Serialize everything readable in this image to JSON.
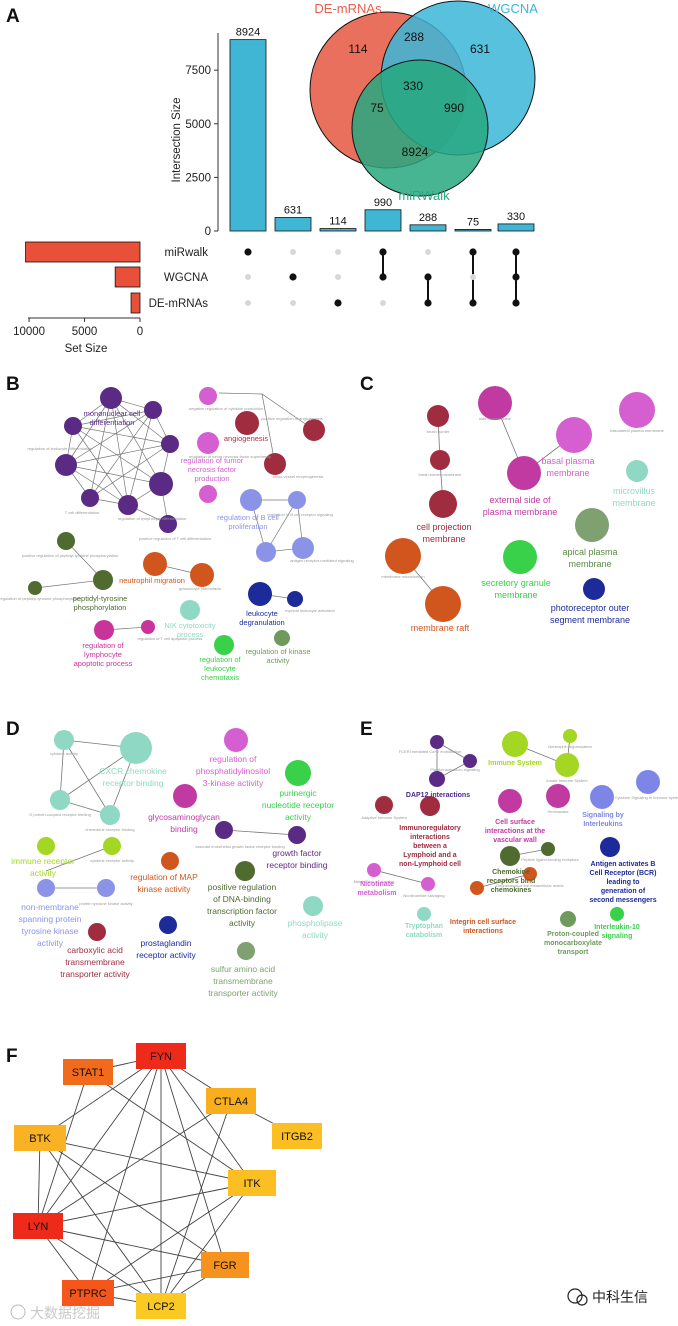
{
  "panels": {
    "a": "A",
    "b": "B",
    "c": "C",
    "d": "D",
    "e": "E",
    "f": "F"
  },
  "venn": {
    "sets": [
      {
        "name": "DE-mRNAs",
        "color": "#e8604c"
      },
      {
        "name": "WGCNA",
        "color": "#3bb6d8"
      },
      {
        "name": "miRWalk",
        "color": "#27a87f"
      }
    ],
    "regions": {
      "de_only": "114",
      "wgcna_only": "631",
      "mirwalk_only": "8924",
      "de_wgcna": "288",
      "de_mirwalk": "75",
      "wgcna_mirwalk": "990",
      "all": "330"
    }
  },
  "chart_data": {
    "type": "bar",
    "title": "",
    "ylabel": "Intersection Size",
    "ylim": [
      0,
      9000
    ],
    "yticks": [
      0,
      2500,
      5000,
      7500
    ],
    "bar_color": "#41b6d4",
    "categories": [
      "miRwalk",
      "WGCNA",
      "DE-mRNAs",
      "miRwalk+WGCNA",
      "WGCNA+DE-mRNAs",
      "miRwalk+DE-mRNAs",
      "miRwalk+WGCNA+DE-mRNAs"
    ],
    "values": [
      8924,
      631,
      114,
      990,
      288,
      75,
      330
    ],
    "matrix": [
      [
        0
      ],
      [
        1
      ],
      [
        2
      ],
      [
        0,
        1
      ],
      [
        1,
        2
      ],
      [
        0,
        2
      ],
      [
        0,
        1,
        2
      ]
    ],
    "set_names": [
      "miRwalk",
      "WGCNA",
      "DE-mRNAs"
    ],
    "set_size": {
      "xlabel": "Set Size",
      "values": [
        10319,
        2239,
        807
      ],
      "xlim": [
        0,
        11000
      ],
      "xticks": [
        10000,
        5000,
        0
      ],
      "color": "#e8503a"
    }
  },
  "network_b": {
    "labels": [
      {
        "text": "mononuclear cell",
        "color": "#5b2a84"
      },
      {
        "text": "differentiation",
        "color": "#5b2a84"
      },
      {
        "text": "angiogenesis",
        "color": "#b03040"
      },
      {
        "text": "regulation of tumor",
        "color": "#d55fd0"
      },
      {
        "text": "necrosis factor",
        "color": "#d55fd0"
      },
      {
        "text": "production",
        "color": "#d55fd0"
      },
      {
        "text": "regulation of B cell",
        "color": "#8b93e6"
      },
      {
        "text": "proliferation",
        "color": "#8b93e6"
      },
      {
        "text": "neutrophil migration",
        "color": "#d0561e"
      },
      {
        "text": "peptidyl-tyrosine",
        "color": "#4f6b30"
      },
      {
        "text": "phosphorylation",
        "color": "#4f6b30"
      },
      {
        "text": "leukocyte",
        "color": "#1d2a9a"
      },
      {
        "text": "degranulation",
        "color": "#1d2a9a"
      },
      {
        "text": "NIK cytotoxicity",
        "color": "#8fd9c4"
      },
      {
        "text": "process",
        "color": "#8fd9c4"
      },
      {
        "text": "regulation of",
        "color": "#c8349a"
      },
      {
        "text": "lymphocyte",
        "color": "#c8349a"
      },
      {
        "text": "apoptotic process",
        "color": "#c8349a"
      },
      {
        "text": "regulation of",
        "color": "#39d04a"
      },
      {
        "text": "leukocyte",
        "color": "#39d04a"
      },
      {
        "text": "chemotaxis",
        "color": "#39d04a"
      },
      {
        "text": "regulation of kinase",
        "color": "#6f9a5c"
      },
      {
        "text": "activity",
        "color": "#6f9a5c"
      }
    ]
  },
  "network_c": {
    "labels": [
      {
        "text": "cell projection",
        "color": "#a02c40"
      },
      {
        "text": "membrane",
        "color": "#a02c40"
      },
      {
        "text": "basal plasma",
        "color": "#d55fd0"
      },
      {
        "text": "membrane",
        "color": "#d55fd0"
      },
      {
        "text": "external side of",
        "color": "#c03aa2"
      },
      {
        "text": "plasma membrane",
        "color": "#c03aa2"
      },
      {
        "text": "microvillus",
        "color": "#8fd9c4"
      },
      {
        "text": "membrane",
        "color": "#8fd9c4"
      },
      {
        "text": "apical plasma",
        "color": "#5a8a46"
      },
      {
        "text": "membrane",
        "color": "#5a8a46"
      },
      {
        "text": "secretory granule",
        "color": "#39d04a"
      },
      {
        "text": "membrane",
        "color": "#39d04a"
      },
      {
        "text": "photoreceptor outer",
        "color": "#1d2a9a"
      },
      {
        "text": "segment membrane",
        "color": "#1d2a9a"
      },
      {
        "text": "membrane raft",
        "color": "#d0561e"
      }
    ]
  },
  "network_d": {
    "labels": [
      {
        "text": "CXCR chemokine",
        "color": "#8fd9c4"
      },
      {
        "text": "receptor binding",
        "color": "#8fd9c4"
      },
      {
        "text": "regulation of",
        "color": "#d55fd0"
      },
      {
        "text": "phosphatidylinositol",
        "color": "#d55fd0"
      },
      {
        "text": "3-kinase activity",
        "color": "#d55fd0"
      },
      {
        "text": "purinergic",
        "color": "#39d04a"
      },
      {
        "text": "nucleotide receptor",
        "color": "#39d04a"
      },
      {
        "text": "activity",
        "color": "#39d04a"
      },
      {
        "text": "glycosaminoglycan",
        "color": "#c03aa2"
      },
      {
        "text": "binding",
        "color": "#c03aa2"
      },
      {
        "text": "growth factor",
        "color": "#5b2a84"
      },
      {
        "text": "receptor binding",
        "color": "#5b2a84"
      },
      {
        "text": "immune receptor",
        "color": "#a4d624"
      },
      {
        "text": "activity",
        "color": "#a4d624"
      },
      {
        "text": "regulation of MAP",
        "color": "#d0561e"
      },
      {
        "text": "kinase activity",
        "color": "#d0561e"
      },
      {
        "text": "positive regulation",
        "color": "#4f6b30"
      },
      {
        "text": "of DNA-binding",
        "color": "#4f6b30"
      },
      {
        "text": "transcription factor",
        "color": "#4f6b30"
      },
      {
        "text": "activity",
        "color": "#4f6b30"
      },
      {
        "text": "phospholipase",
        "color": "#8fd9c4"
      },
      {
        "text": "activity",
        "color": "#8fd9c4"
      },
      {
        "text": "non-membrane",
        "color": "#8b93e6"
      },
      {
        "text": "spanning protein",
        "color": "#8b93e6"
      },
      {
        "text": "tyrosine kinase",
        "color": "#8b93e6"
      },
      {
        "text": "activity",
        "color": "#8b93e6"
      },
      {
        "text": "carboxylic acid",
        "color": "#a02c40"
      },
      {
        "text": "transmembrane",
        "color": "#a02c40"
      },
      {
        "text": "transporter activity",
        "color": "#a02c40"
      },
      {
        "text": "prostaglandin",
        "color": "#1d2a9a"
      },
      {
        "text": "receptor activity",
        "color": "#1d2a9a"
      },
      {
        "text": "sulfur amino acid",
        "color": "#7fa070"
      },
      {
        "text": "transmembrane",
        "color": "#7fa070"
      },
      {
        "text": "transporter activity",
        "color": "#7fa070"
      }
    ]
  },
  "network_e": {
    "labels": [
      {
        "text": "Immune System",
        "color": "#a4d624"
      },
      {
        "text": "DAP12 interactions",
        "color": "#4a2a8a"
      },
      {
        "text": "Cell surface",
        "color": "#c03aa2"
      },
      {
        "text": "interactions at the",
        "color": "#c03aa2"
      },
      {
        "text": "vascular wall",
        "color": "#c03aa2"
      },
      {
        "text": "Signaling by",
        "color": "#7d86e6"
      },
      {
        "text": "Interleukins",
        "color": "#7d86e6"
      },
      {
        "text": "Immunoregulatory",
        "color": "#a02c40"
      },
      {
        "text": "interactions",
        "color": "#a02c40"
      },
      {
        "text": "between a",
        "color": "#a02c40"
      },
      {
        "text": "Lymphoid and a",
        "color": "#a02c40"
      },
      {
        "text": "non-Lymphoid cell",
        "color": "#a02c40"
      },
      {
        "text": "Chemokine",
        "color": "#4f6b30"
      },
      {
        "text": "receptors bind",
        "color": "#4f6b30"
      },
      {
        "text": "chemokines",
        "color": "#4f6b30"
      },
      {
        "text": "Antigen activates B",
        "color": "#1d2a9a"
      },
      {
        "text": "Cell Receptor (BCR)",
        "color": "#1d2a9a"
      },
      {
        "text": "leading to",
        "color": "#1d2a9a"
      },
      {
        "text": "generation of",
        "color": "#1d2a9a"
      },
      {
        "text": "second messengers",
        "color": "#1d2a9a"
      },
      {
        "text": "Nicotinate",
        "color": "#d55fd0"
      },
      {
        "text": "metabolism",
        "color": "#d55fd0"
      },
      {
        "text": "Tryptophan",
        "color": "#8fd9c4"
      },
      {
        "text": "catabolism",
        "color": "#8fd9c4"
      },
      {
        "text": "Integrin cell surface",
        "color": "#d0561e"
      },
      {
        "text": "interactions",
        "color": "#d0561e"
      },
      {
        "text": "Proton-coupled",
        "color": "#6f9a5c"
      },
      {
        "text": "monocarboxylate",
        "color": "#6f9a5c"
      },
      {
        "text": "transport",
        "color": "#6f9a5c"
      },
      {
        "text": "Interleukin-10",
        "color": "#39d04a"
      },
      {
        "text": "signaling",
        "color": "#39d04a"
      }
    ]
  },
  "ppi": {
    "nodes": [
      {
        "name": "FYN",
        "fill": "#ee2a1a"
      },
      {
        "name": "STAT1",
        "fill": "#f26a1c"
      },
      {
        "name": "CTLA4",
        "fill": "#f9ae1e"
      },
      {
        "name": "ITGB2",
        "fill": "#fbbf24"
      },
      {
        "name": "BTK",
        "fill": "#f9b223"
      },
      {
        "name": "ITK",
        "fill": "#fbbf24"
      },
      {
        "name": "LYN",
        "fill": "#ee2a1a"
      },
      {
        "name": "FGR",
        "fill": "#f6921e"
      },
      {
        "name": "PTPRC",
        "fill": "#f4561c"
      },
      {
        "name": "LCP2",
        "fill": "#fbc923"
      }
    ],
    "edges": [
      [
        "FYN",
        "STAT1"
      ],
      [
        "FYN",
        "CTLA4"
      ],
      [
        "FYN",
        "BTK"
      ],
      [
        "FYN",
        "ITK"
      ],
      [
        "FYN",
        "LYN"
      ],
      [
        "FYN",
        "FGR"
      ],
      [
        "FYN",
        "PTPRC"
      ],
      [
        "FYN",
        "LCP2"
      ],
      [
        "STAT1",
        "LYN"
      ],
      [
        "STAT1",
        "ITK"
      ],
      [
        "CTLA4",
        "ITGB2"
      ],
      [
        "CTLA4",
        "LYN"
      ],
      [
        "CTLA4",
        "LCP2"
      ],
      [
        "BTK",
        "ITK"
      ],
      [
        "BTK",
        "LYN"
      ],
      [
        "BTK",
        "FGR"
      ],
      [
        "BTK",
        "LCP2"
      ],
      [
        "ITK",
        "LYN"
      ],
      [
        "ITK",
        "PTPRC"
      ],
      [
        "ITK",
        "LCP2"
      ],
      [
        "LYN",
        "FGR"
      ],
      [
        "LYN",
        "PTPRC"
      ],
      [
        "LYN",
        "LCP2"
      ],
      [
        "FGR",
        "LCP2"
      ],
      [
        "FGR",
        "PTPRC"
      ],
      [
        "PTPRC",
        "LCP2"
      ]
    ]
  },
  "watermarks": {
    "left": "大数据挖掘",
    "right": "中科生信"
  },
  "colors": {
    "venn_outline": "#111111",
    "matrix_dot_off": "#d8d8d8",
    "matrix_dot_on": "#111111",
    "edge": "#444444"
  }
}
